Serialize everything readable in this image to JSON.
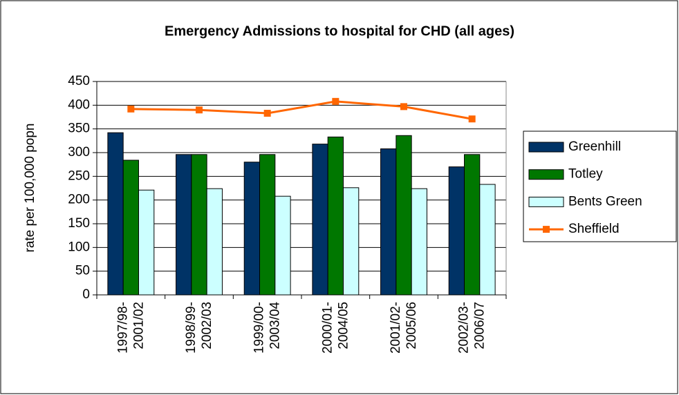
{
  "chart_data": {
    "type": "bar_line",
    "title": "Emergency Admissions to hospital for CHD (all ages)",
    "y_label": "rate per 100,000 popn",
    "categories": [
      [
        "1997/98-",
        "2001/02"
      ],
      [
        "1998/99-",
        "2002/03"
      ],
      [
        "1999/00-",
        "2003/04"
      ],
      [
        "2000/01-",
        "2004/05"
      ],
      [
        "2001/02-",
        "2005/06"
      ],
      [
        "2002/03-",
        "2006/07"
      ]
    ],
    "series": [
      {
        "name": "Greenhill",
        "color": "#003366",
        "type": "bar",
        "values": [
          342,
          296,
          280,
          318,
          308,
          270
        ]
      },
      {
        "name": "Totley",
        "color": "#007700",
        "type": "bar",
        "values": [
          284,
          296,
          296,
          333,
          336,
          296
        ]
      },
      {
        "name": "Bents Green",
        "color": "#ccffff",
        "type": "bar",
        "values": [
          221,
          224,
          208,
          226,
          224,
          233
        ]
      },
      {
        "name": "Sheffield",
        "color": "#ff6600",
        "type": "line",
        "values": [
          392,
          390,
          383,
          408,
          397,
          371
        ]
      }
    ],
    "ylim": [
      0,
      450
    ],
    "yticks": [
      0,
      50,
      100,
      150,
      200,
      250,
      300,
      350,
      400,
      450
    ],
    "grid": true,
    "legend": "right"
  }
}
